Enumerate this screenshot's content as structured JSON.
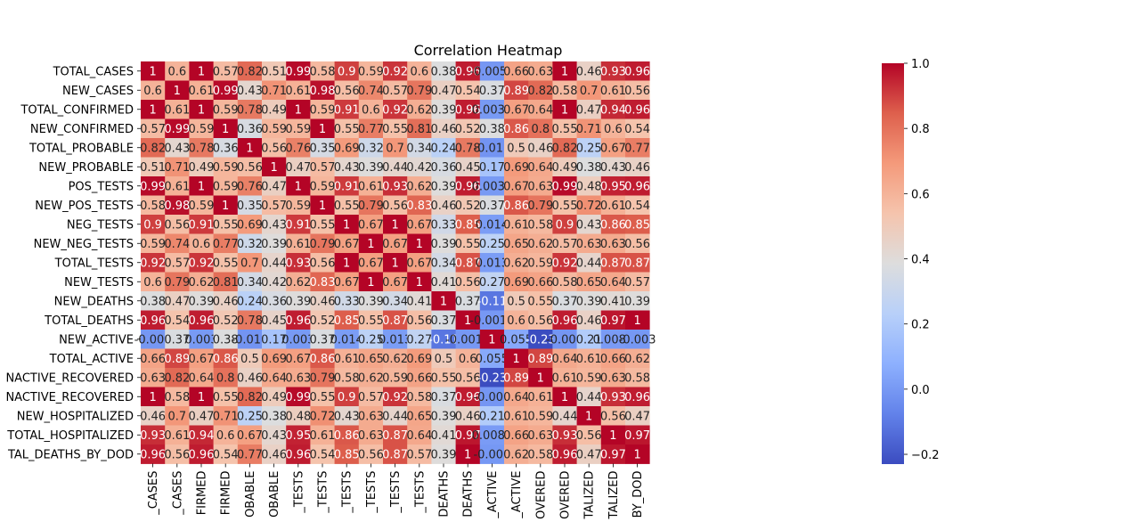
{
  "chart_data": {
    "type": "heatmap",
    "title": "Correlation Heatmap",
    "colormap": "coolwarm",
    "vmin": -0.23,
    "vmax": 1.0,
    "colorbar_ticks": [
      "1.0",
      "0.8",
      "0.6",
      "0.4",
      "0.2",
      "0.0",
      "−0.2"
    ],
    "row_labels": [
      "TOTAL_CASES",
      "NEW_CASES",
      "TOTAL_CONFIRMED",
      "NEW_CONFIRMED",
      "TOTAL_PROBABLE",
      "NEW_PROBABLE",
      "POS_TESTS",
      "NEW_POS_TESTS",
      "NEG_TESTS",
      "NEW_NEG_TESTS",
      "TOTAL_TESTS",
      "NEW_TESTS",
      "NEW_DEATHS",
      "TOTAL_DEATHS",
      "NEW_ACTIVE",
      "TOTAL_ACTIVE",
      "NACTIVE_RECOVERED",
      "NACTIVE_RECOVERED",
      "NEW_HOSPITALIZED",
      "TOTAL_HOSPITALIZED",
      "TAL_DEATHS_BY_DOD"
    ],
    "col_labels": [
      "_CASES",
      "_CASES",
      "FIRMED",
      "FIRMED",
      "OBABLE",
      "OBABLE",
      "_TESTS",
      "_TESTS",
      "_TESTS",
      "_TESTS",
      "_TESTS",
      "_TESTS",
      "DEATHS",
      "DEATHS",
      "_ACTIVE",
      "_ACTIVE",
      "OVERED",
      "OVERED",
      "TALIZED",
      "TALIZED",
      "BY_DOD"
    ],
    "cells": [
      [
        "1",
        "0.6",
        "1",
        "0.57",
        "0.82",
        "0.51",
        "0.99",
        "0.58",
        "0.9",
        "0.59",
        "0.92",
        "0.6",
        "0.38",
        "0.96",
        "-0.0054",
        "0.66",
        "0.63",
        "1",
        "0.46",
        "0.93",
        "0.96"
      ],
      [
        "0.6",
        "1",
        "0.61",
        "0.99",
        "0.43",
        "0.71",
        "0.61",
        "0.98",
        "0.56",
        "0.74",
        "0.57",
        "0.79",
        "0.47",
        "0.54",
        "0.37",
        "0.89",
        "0.82",
        "0.58",
        "0.7",
        "0.61",
        "0.56"
      ],
      [
        "1",
        "0.61",
        "1",
        "0.59",
        "0.78",
        "0.49",
        "1",
        "0.59",
        "0.91",
        "0.6",
        "0.92",
        "0.62",
        "0.39",
        "0.96",
        "0.0038",
        "0.67",
        "0.64",
        "1",
        "0.47",
        "0.94",
        "0.96"
      ],
      [
        "0.57",
        "0.99",
        "0.59",
        "1",
        "0.36",
        "0.59",
        "0.59",
        "1",
        "0.55",
        "0.77",
        "0.55",
        "0.81",
        "0.46",
        "0.52",
        "0.38",
        "0.86",
        "0.8",
        "0.55",
        "0.71",
        "0.6",
        "0.54"
      ],
      [
        "0.82",
        "0.43",
        "0.78",
        "0.36",
        "1",
        "0.56",
        "0.76",
        "0.35",
        "0.69",
        "0.32",
        "0.7",
        "0.34",
        "0.24",
        "0.78",
        "-0.016",
        "0.5",
        "0.46",
        "0.82",
        "0.25",
        "0.67",
        "0.77"
      ],
      [
        "0.51",
        "0.71",
        "0.49",
        "0.59",
        "0.56",
        "1",
        "0.47",
        "0.57",
        "0.43",
        "0.39",
        "0.44",
        "0.42",
        "0.36",
        "0.45",
        "0.17",
        "0.69",
        "0.64",
        "0.49",
        "0.38",
        "0.43",
        "0.46"
      ],
      [
        "0.99",
        "0.61",
        "1",
        "0.59",
        "0.76",
        "0.47",
        "1",
        "0.59",
        "0.91",
        "0.61",
        "0.93",
        "0.62",
        "0.39",
        "0.96",
        "0.0031",
        "0.67",
        "0.63",
        "0.99",
        "0.48",
        "0.95",
        "0.96"
      ],
      [
        "0.58",
        "0.98",
        "0.59",
        "1",
        "0.35",
        "0.57",
        "0.59",
        "1",
        "0.55",
        "0.79",
        "0.56",
        "0.83",
        "0.46",
        "0.52",
        "0.37",
        "0.86",
        "0.79",
        "0.55",
        "0.72",
        "0.61",
        "0.54"
      ],
      [
        "0.9",
        "0.56",
        "0.91",
        "0.55",
        "0.69",
        "0.43",
        "0.91",
        "0.55",
        "1",
        "0.67",
        "1",
        "0.67",
        "0.33",
        "0.85",
        "0.014",
        "0.61",
        "0.58",
        "0.9",
        "0.43",
        "0.86",
        "0.85"
      ],
      [
        "0.59",
        "0.74",
        "0.6",
        "0.77",
        "0.32",
        "0.39",
        "0.61",
        "0.79",
        "0.67",
        "1",
        "0.67",
        "1",
        "0.39",
        "0.55",
        "0.25",
        "0.65",
        "0.62",
        "0.57",
        "0.63",
        "0.63",
        "0.56"
      ],
      [
        "0.92",
        "0.57",
        "0.92",
        "0.55",
        "0.7",
        "0.44",
        "0.93",
        "0.56",
        "1",
        "0.67",
        "1",
        "0.67",
        "0.34",
        "0.87",
        "0.013",
        "0.62",
        "0.59",
        "0.92",
        "0.44",
        "0.87",
        "0.87"
      ],
      [
        "0.6",
        "0.79",
        "0.62",
        "0.81",
        "0.34",
        "0.42",
        "0.62",
        "0.83",
        "0.67",
        "1",
        "0.67",
        "1",
        "0.41",
        "0.56",
        "0.27",
        "0.69",
        "0.66",
        "0.58",
        "0.65",
        "0.64",
        "0.57"
      ],
      [
        "0.38",
        "0.47",
        "0.39",
        "0.46",
        "0.24",
        "0.36",
        "0.39",
        "0.46",
        "0.33",
        "0.39",
        "0.34",
        "0.41",
        "1",
        "0.37",
        "-0.11",
        "0.5",
        "0.55",
        "0.37",
        "0.39",
        "0.41",
        "0.39"
      ],
      [
        "0.96",
        "0.54",
        "0.96",
        "0.52",
        "0.78",
        "0.45",
        "0.96",
        "0.52",
        "0.85",
        "0.55",
        "0.87",
        "0.56",
        "0.37",
        "1",
        "-0.0012",
        "0.6",
        "0.56",
        "0.96",
        "0.46",
        "0.97",
        "1"
      ],
      [
        "-0.005",
        "0.37",
        "0.003",
        "0.38",
        "-0.016",
        "0.17",
        "0.003",
        "0.37",
        "0.014",
        "0.25",
        "0.013",
        "0.27",
        "-0.11",
        "-0.0012",
        "1",
        "0.055",
        "-0.23",
        "-0.008",
        "0.21",
        "0.0089",
        "-0.003"
      ],
      [
        "0.66",
        "0.89",
        "0.67",
        "0.86",
        "0.5",
        "0.69",
        "0.67",
        "0.86",
        "0.61",
        "0.65",
        "0.62",
        "0.69",
        "0.5",
        "0.6",
        "0.055",
        "1",
        "0.89",
        "0.64",
        "0.61",
        "0.66",
        "0.62"
      ],
      [
        "0.63",
        "0.82",
        "0.64",
        "0.8",
        "0.46",
        "0.64",
        "0.63",
        "0.79",
        "0.58",
        "0.62",
        "0.59",
        "0.66",
        "0.55",
        "0.56",
        "-0.23",
        "0.89",
        "1",
        "0.61",
        "0.59",
        "0.63",
        "0.58"
      ],
      [
        "1",
        "0.58",
        "1",
        "0.55",
        "0.82",
        "0.49",
        "0.99",
        "0.55",
        "0.9",
        "0.57",
        "0.92",
        "0.58",
        "0.37",
        "0.96",
        "-0.008",
        "0.64",
        "0.61",
        "1",
        "0.44",
        "0.93",
        "0.96"
      ],
      [
        "0.46",
        "0.7",
        "0.47",
        "0.71",
        "0.25",
        "0.38",
        "0.48",
        "0.72",
        "0.43",
        "0.63",
        "0.44",
        "0.65",
        "0.39",
        "0.46",
        "0.21",
        "0.61",
        "0.59",
        "0.44",
        "1",
        "0.56",
        "0.47"
      ],
      [
        "0.93",
        "0.61",
        "0.94",
        "0.6",
        "0.67",
        "0.43",
        "0.95",
        "0.61",
        "0.86",
        "0.63",
        "0.87",
        "0.64",
        "0.41",
        "0.97",
        "0.0089",
        "0.66",
        "0.63",
        "0.93",
        "0.56",
        "1",
        "0.97"
      ],
      [
        "0.96",
        "0.56",
        "0.96",
        "0.54",
        "0.77",
        "0.46",
        "0.96",
        "0.54",
        "0.85",
        "0.56",
        "0.87",
        "0.57",
        "0.39",
        "1",
        "-0.003",
        "0.62",
        "0.58",
        "0.96",
        "0.47",
        "0.97",
        "1"
      ]
    ]
  }
}
